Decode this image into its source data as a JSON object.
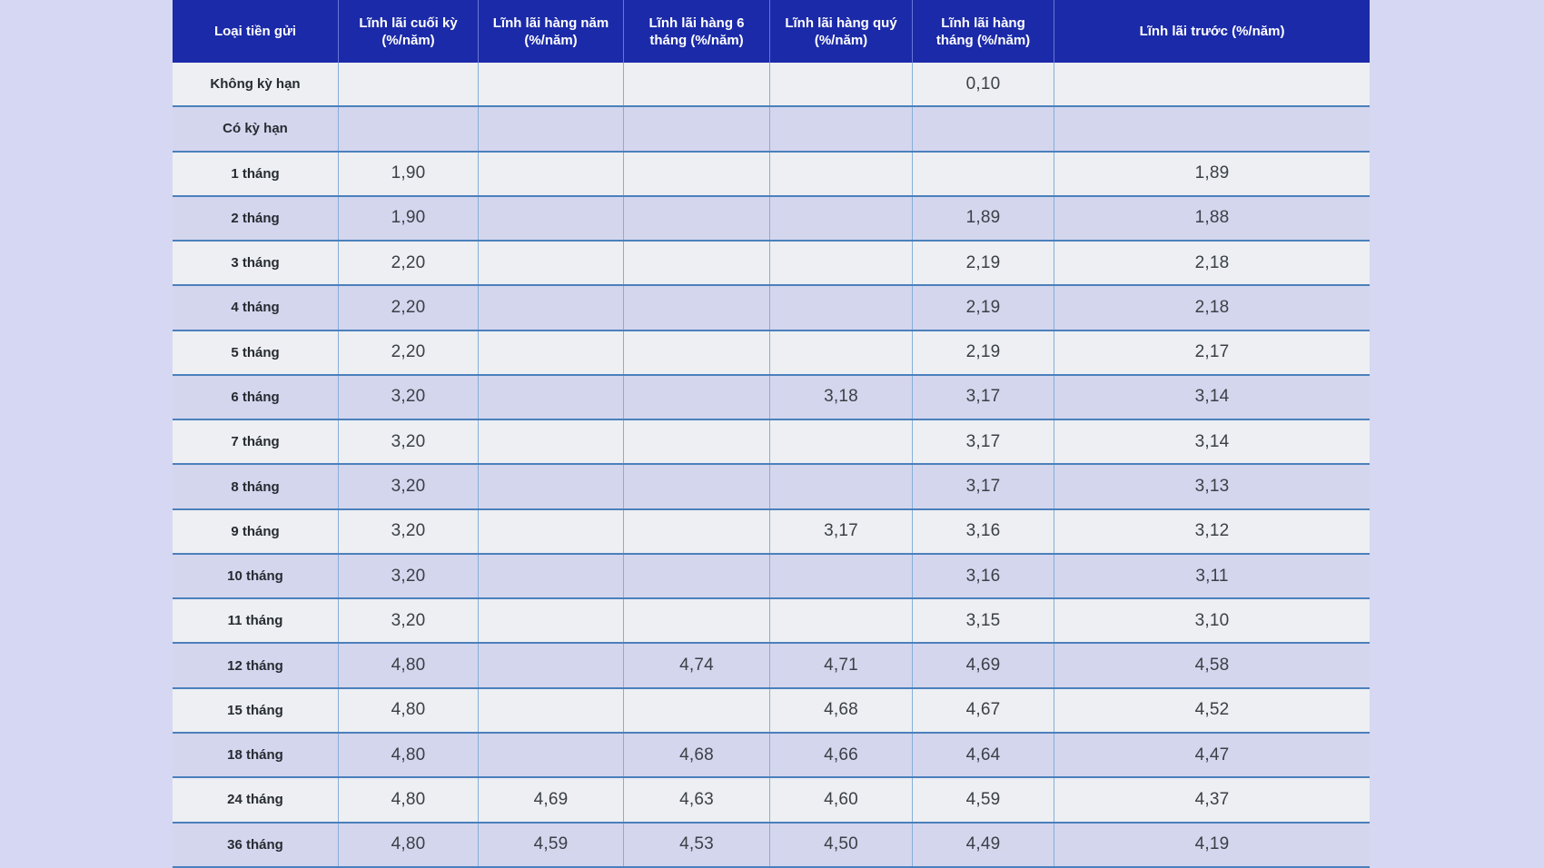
{
  "colors": {
    "page_background": "#d6d7f2",
    "header_background": "#1b2aa8",
    "header_text": "#ffffff",
    "row_gray": "#edeff2",
    "row_lavender": "#d4d6ee",
    "row_border_blue": "#4b80bc",
    "column_border_blue": "#85aeda",
    "label_text": "#262b31",
    "value_text": "#3b4046"
  },
  "table": {
    "columns": [
      {
        "label": "Loại tiền gửi"
      },
      {
        "label": "Lĩnh lãi cuối kỳ (%/năm)"
      },
      {
        "label": "Lĩnh lãi hàng năm (%/năm)"
      },
      {
        "label": "Lĩnh lãi hàng 6 tháng (%/năm)"
      },
      {
        "label": "Lĩnh lãi hàng quý (%/năm)"
      },
      {
        "label": "Lĩnh lãi hàng tháng (%/năm)"
      },
      {
        "label": "Lĩnh lãi trước (%/năm)"
      }
    ],
    "rows": [
      {
        "label": "Không kỳ hạn",
        "values": [
          "",
          "",
          "",
          "",
          "0,10",
          ""
        ]
      },
      {
        "label": "Có kỳ hạn",
        "values": [
          "",
          "",
          "",
          "",
          "",
          ""
        ]
      },
      {
        "label": "1 tháng",
        "values": [
          "1,90",
          "",
          "",
          "",
          "",
          "1,89"
        ]
      },
      {
        "label": "2 tháng",
        "values": [
          "1,90",
          "",
          "",
          "",
          "1,89",
          "1,88"
        ]
      },
      {
        "label": "3 tháng",
        "values": [
          "2,20",
          "",
          "",
          "",
          "2,19",
          "2,18"
        ]
      },
      {
        "label": "4 tháng",
        "values": [
          "2,20",
          "",
          "",
          "",
          "2,19",
          "2,18"
        ]
      },
      {
        "label": "5 tháng",
        "values": [
          "2,20",
          "",
          "",
          "",
          "2,19",
          "2,17"
        ]
      },
      {
        "label": "6 tháng",
        "values": [
          "3,20",
          "",
          "",
          "3,18",
          "3,17",
          "3,14"
        ]
      },
      {
        "label": "7 tháng",
        "values": [
          "3,20",
          "",
          "",
          "",
          "3,17",
          "3,14"
        ]
      },
      {
        "label": "8 tháng",
        "values": [
          "3,20",
          "",
          "",
          "",
          "3,17",
          "3,13"
        ]
      },
      {
        "label": "9 tháng",
        "values": [
          "3,20",
          "",
          "",
          "3,17",
          "3,16",
          "3,12"
        ]
      },
      {
        "label": "10 tháng",
        "values": [
          "3,20",
          "",
          "",
          "",
          "3,16",
          "3,11"
        ]
      },
      {
        "label": "11 tháng",
        "values": [
          "3,20",
          "",
          "",
          "",
          "3,15",
          "3,10"
        ]
      },
      {
        "label": "12 tháng",
        "values": [
          "4,80",
          "",
          "4,74",
          "4,71",
          "4,69",
          "4,58"
        ]
      },
      {
        "label": "15 tháng",
        "values": [
          "4,80",
          "",
          "",
          "4,68",
          "4,67",
          "4,52"
        ]
      },
      {
        "label": "18 tháng",
        "values": [
          "4,80",
          "",
          "4,68",
          "4,66",
          "4,64",
          "4,47"
        ]
      },
      {
        "label": "24 tháng",
        "values": [
          "4,80",
          "4,69",
          "4,63",
          "4,60",
          "4,59",
          "4,37"
        ]
      },
      {
        "label": "36 tháng",
        "values": [
          "4,80",
          "4,59",
          "4,53",
          "4,50",
          "4,49",
          "4,19"
        ]
      }
    ]
  },
  "chart_data": {
    "type": "table",
    "decimal_separator": ",",
    "unit": "%/năm",
    "columns": [
      "Loại tiền gửi",
      "Lĩnh lãi cuối kỳ (%/năm)",
      "Lĩnh lãi hàng năm (%/năm)",
      "Lĩnh lãi hàng 6 tháng (%/năm)",
      "Lĩnh lãi hàng quý (%/năm)",
      "Lĩnh lãi hàng tháng (%/năm)",
      "Lĩnh lãi trước (%/năm)"
    ],
    "rows": [
      [
        "Không kỳ hạn",
        null,
        null,
        null,
        null,
        0.1,
        null
      ],
      [
        "Có kỳ hạn",
        null,
        null,
        null,
        null,
        null,
        null
      ],
      [
        "1 tháng",
        1.9,
        null,
        null,
        null,
        null,
        1.89
      ],
      [
        "2 tháng",
        1.9,
        null,
        null,
        null,
        1.89,
        1.88
      ],
      [
        "3 tháng",
        2.2,
        null,
        null,
        null,
        2.19,
        2.18
      ],
      [
        "4 tháng",
        2.2,
        null,
        null,
        null,
        2.19,
        2.18
      ],
      [
        "5 tháng",
        2.2,
        null,
        null,
        null,
        2.19,
        2.17
      ],
      [
        "6 tháng",
        3.2,
        null,
        null,
        3.18,
        3.17,
        3.14
      ],
      [
        "7 tháng",
        3.2,
        null,
        null,
        null,
        3.17,
        3.14
      ],
      [
        "8 tháng",
        3.2,
        null,
        null,
        null,
        3.17,
        3.13
      ],
      [
        "9 tháng",
        3.2,
        null,
        null,
        3.17,
        3.16,
        3.12
      ],
      [
        "10 tháng",
        3.2,
        null,
        null,
        null,
        3.16,
        3.11
      ],
      [
        "11 tháng",
        3.2,
        null,
        null,
        null,
        3.15,
        3.1
      ],
      [
        "12 tháng",
        4.8,
        null,
        4.74,
        4.71,
        4.69,
        4.58
      ],
      [
        "15 tháng",
        4.8,
        null,
        null,
        4.68,
        4.67,
        4.52
      ],
      [
        "18 tháng",
        4.8,
        null,
        4.68,
        4.66,
        4.64,
        4.47
      ],
      [
        "24 tháng",
        4.8,
        4.69,
        4.63,
        4.6,
        4.59,
        4.37
      ],
      [
        "36 tháng",
        4.8,
        4.59,
        4.53,
        4.5,
        4.49,
        4.19
      ]
    ],
    "layout": {
      "grid": true,
      "header_style": "dark-blue-band",
      "zebra_striping": true,
      "first_row_striping_color": "gray"
    }
  }
}
